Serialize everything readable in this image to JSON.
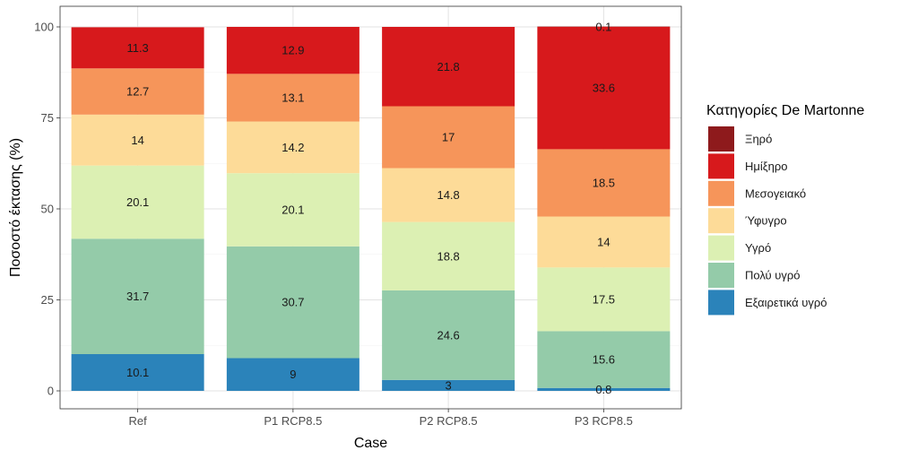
{
  "chart_data": {
    "type": "bar",
    "stacked": true,
    "xlabel": "Case",
    "ylabel": "Ποσοστό έκτασης (%)",
    "ylim": [
      0,
      100
    ],
    "yticks": [
      0,
      25,
      50,
      75,
      100
    ],
    "categories": [
      "Ref",
      "P1 RCP8.5",
      "P2 RCP8.5",
      "P3 RCP8.5"
    ],
    "legend_title": "Κατηγορίες De Martonne",
    "legend_position": "right",
    "series": [
      {
        "name": "Εξαιρετικά υγρό",
        "color": "#2b83ba",
        "values": [
          10.1,
          9,
          3,
          0.8
        ],
        "labels": [
          "10.1",
          "9",
          "3",
          "0.8"
        ]
      },
      {
        "name": "Πολύ υγρό",
        "color": "#94cba9",
        "values": [
          31.7,
          30.7,
          24.6,
          15.6
        ],
        "labels": [
          "31.7",
          "30.7",
          "24.6",
          "15.6"
        ]
      },
      {
        "name": "Υγρό",
        "color": "#dcf0b3",
        "values": [
          20.1,
          20.1,
          18.8,
          17.5
        ],
        "labels": [
          "20.1",
          "20.1",
          "18.8",
          "17.5"
        ]
      },
      {
        "name": "Ύφυγρο",
        "color": "#fddb98",
        "values": [
          14,
          14.2,
          14.8,
          14
        ],
        "labels": [
          "14",
          "14.2",
          "14.8",
          "14"
        ]
      },
      {
        "name": "Μεσογειακό",
        "color": "#f6955a",
        "values": [
          12.7,
          13.1,
          17,
          18.5
        ],
        "labels": [
          "12.7",
          "13.1",
          "17",
          "18.5"
        ]
      },
      {
        "name": "Ημίξηρο",
        "color": "#d7191c",
        "values": [
          11.3,
          12.9,
          21.8,
          33.6
        ],
        "labels": [
          "11.3",
          "12.9",
          "21.8",
          "33.6"
        ]
      },
      {
        "name": "Ξηρό",
        "color": "#8e1a1c",
        "values": [
          0,
          0,
          0,
          0.1
        ],
        "labels": [
          "",
          "",
          "",
          "0.1"
        ]
      }
    ],
    "legend_order": [
      "Ξηρό",
      "Ημίξηρο",
      "Μεσογειακό",
      "Ύφυγρο",
      "Υγρό",
      "Πολύ υγρό",
      "Εξαιρετικά υγρό"
    ]
  }
}
